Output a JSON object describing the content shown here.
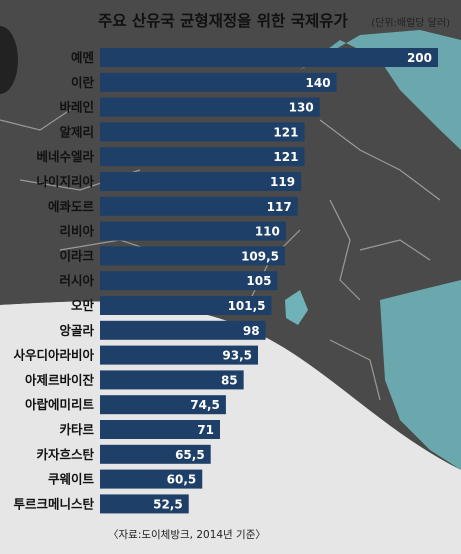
{
  "chart_data": {
    "type": "bar",
    "orientation": "horizontal",
    "title": "주요 산유국 균형재정을 위한 국제유가",
    "unit": "(단위:배럴당 달러)",
    "source": "〈자료:도이체방크, 2014년 기준〉",
    "categories": [
      "예멘",
      "이란",
      "바레인",
      "알제리",
      "베네수엘라",
      "나이지리아",
      "에콰도르",
      "리비아",
      "이라크",
      "러시아",
      "오만",
      "앙골라",
      "사우디아라비아",
      "아제르바이잔",
      "아랍에미리트",
      "카타르",
      "카자흐스탄",
      "쿠웨이트",
      "투르크메니스탄"
    ],
    "values": [
      200,
      140,
      130,
      121,
      121,
      119,
      117,
      110,
      109.5,
      105,
      101.5,
      98,
      93.5,
      85,
      74.5,
      71,
      65.5,
      60.5,
      52.5
    ],
    "value_labels": [
      "200",
      "140",
      "130",
      "121",
      "121",
      "119",
      "117",
      "110",
      "109,5",
      "105",
      "101,5",
      "98",
      "93,5",
      "85",
      "74,5",
      "71",
      "65,5",
      "60,5",
      "52,5"
    ],
    "xlim": [
      0,
      200
    ],
    "grid": false,
    "bar_color": "#1e3f68"
  }
}
